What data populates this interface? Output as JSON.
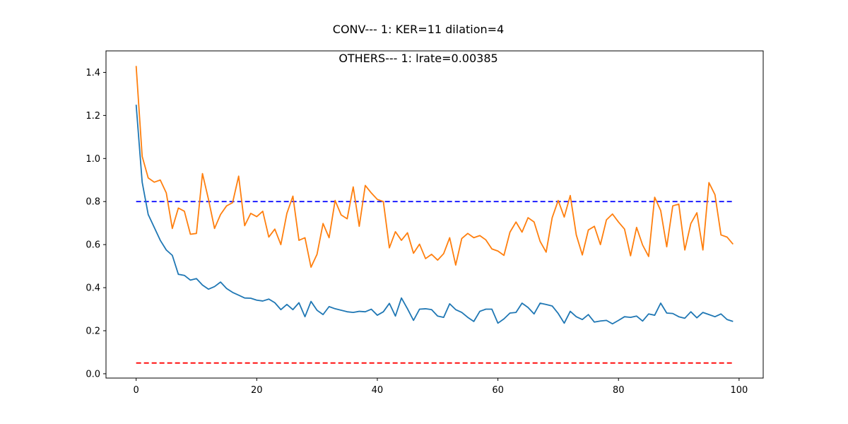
{
  "chart_data": {
    "type": "line",
    "title": "CONV--- 1: KER=11   dilation=4",
    "subtitle": "OTHERS--- 1: lrate=0.00385",
    "xlabel": "",
    "ylabel": "",
    "xlim": [
      -5,
      104
    ],
    "ylim": [
      -0.02,
      1.5
    ],
    "xticks": [
      0,
      20,
      40,
      60,
      80,
      100
    ],
    "xtick_labels": [
      "0",
      "20",
      "40",
      "60",
      "80",
      "100"
    ],
    "yticks": [
      0.0,
      0.2,
      0.4,
      0.6,
      0.8,
      1.0,
      1.2,
      1.4
    ],
    "ytick_labels": [
      "0.0",
      "0.2",
      "0.4",
      "0.6",
      "0.8",
      "1.0",
      "1.2",
      "1.4"
    ],
    "grid": false,
    "legend": "none",
    "x": [
      0,
      1,
      2,
      3,
      4,
      5,
      6,
      7,
      8,
      9,
      10,
      11,
      12,
      13,
      14,
      15,
      16,
      17,
      18,
      19,
      20,
      21,
      22,
      23,
      24,
      25,
      26,
      27,
      28,
      29,
      30,
      31,
      32,
      33,
      34,
      35,
      36,
      37,
      38,
      39,
      40,
      41,
      42,
      43,
      44,
      45,
      46,
      47,
      48,
      49,
      50,
      51,
      52,
      53,
      54,
      55,
      56,
      57,
      58,
      59,
      60,
      61,
      62,
      63,
      64,
      65,
      66,
      67,
      68,
      69,
      70,
      71,
      72,
      73,
      74,
      75,
      76,
      77,
      78,
      79,
      80,
      81,
      82,
      83,
      84,
      85,
      86,
      87,
      88,
      89,
      90,
      91,
      92,
      93,
      94,
      95,
      96,
      97,
      98,
      99
    ],
    "series": [
      {
        "color": "#1f77b4",
        "values": [
          1.25,
          0.89,
          0.74,
          0.68,
          0.62,
          0.575,
          0.55,
          0.462,
          0.457,
          0.435,
          0.442,
          0.412,
          0.393,
          0.405,
          0.426,
          0.396,
          0.378,
          0.365,
          0.352,
          0.351,
          0.342,
          0.338,
          0.347,
          0.33,
          0.298,
          0.322,
          0.298,
          0.33,
          0.265,
          0.336,
          0.295,
          0.275,
          0.312,
          0.302,
          0.295,
          0.288,
          0.285,
          0.29,
          0.288,
          0.3,
          0.272,
          0.288,
          0.327,
          0.268,
          0.352,
          0.302,
          0.248,
          0.3,
          0.302,
          0.298,
          0.268,
          0.262,
          0.325,
          0.298,
          0.285,
          0.262,
          0.243,
          0.29,
          0.3,
          0.3,
          0.235,
          0.255,
          0.282,
          0.285,
          0.328,
          0.308,
          0.278,
          0.328,
          0.322,
          0.315,
          0.28,
          0.235,
          0.29,
          0.265,
          0.252,
          0.275,
          0.24,
          0.245,
          0.248,
          0.232,
          0.248,
          0.265,
          0.262,
          0.268,
          0.245,
          0.278,
          0.272,
          0.328,
          0.282,
          0.28,
          0.265,
          0.258,
          0.288,
          0.26,
          0.285,
          0.275,
          0.265,
          0.278,
          0.252,
          0.243
        ]
      },
      {
        "color": "#ff7f0e",
        "values": [
          1.43,
          1.01,
          0.91,
          0.89,
          0.9,
          0.84,
          0.675,
          0.77,
          0.755,
          0.648,
          0.652,
          0.93,
          0.81,
          0.675,
          0.74,
          0.78,
          0.795,
          0.918,
          0.688,
          0.745,
          0.73,
          0.755,
          0.635,
          0.672,
          0.6,
          0.745,
          0.825,
          0.62,
          0.632,
          0.495,
          0.555,
          0.698,
          0.632,
          0.805,
          0.738,
          0.72,
          0.868,
          0.685,
          0.875,
          0.84,
          0.81,
          0.8,
          0.585,
          0.66,
          0.62,
          0.655,
          0.56,
          0.602,
          0.535,
          0.555,
          0.528,
          0.558,
          0.632,
          0.505,
          0.628,
          0.652,
          0.632,
          0.642,
          0.622,
          0.58,
          0.57,
          0.55,
          0.658,
          0.705,
          0.658,
          0.725,
          0.705,
          0.615,
          0.565,
          0.725,
          0.805,
          0.728,
          0.828,
          0.645,
          0.552,
          0.668,
          0.685,
          0.6,
          0.715,
          0.742,
          0.705,
          0.672,
          0.548,
          0.68,
          0.598,
          0.545,
          0.82,
          0.758,
          0.59,
          0.78,
          0.788,
          0.575,
          0.698,
          0.748,
          0.575,
          0.888,
          0.832,
          0.645,
          0.635,
          0.602
        ]
      }
    ],
    "hlines": [
      {
        "y": 0.8,
        "color": "#0000ff",
        "style": "dashed",
        "xmin": 0,
        "xmax": 99
      },
      {
        "y": 0.05,
        "color": "#ff0000",
        "style": "dashed",
        "xmin": 0,
        "xmax": 99
      }
    ]
  }
}
